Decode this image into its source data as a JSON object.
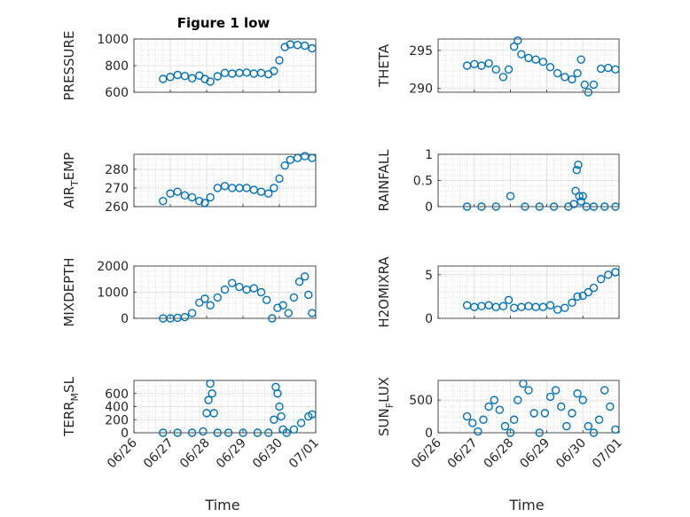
{
  "figure": {
    "title": "Figure 1 low",
    "marker_color": "#0072BD",
    "x_axis": {
      "label": "Time",
      "ticks": [
        "06/26",
        "06/27",
        "06/28",
        "06/29",
        "06/30",
        "07/01"
      ],
      "range": [
        0,
        5
      ]
    }
  },
  "chart_data": [
    {
      "id": "pressure",
      "type": "scatter",
      "ylabel": "PRESSURE",
      "ylim": [
        600,
        1000
      ],
      "yticks": [
        600,
        800,
        1000
      ],
      "ytick_labels": [
        "600",
        "800",
        "1000"
      ],
      "grid": true,
      "x": [
        0.8,
        1.0,
        1.2,
        1.4,
        1.6,
        1.8,
        1.95,
        2.1,
        2.3,
        2.5,
        2.7,
        2.9,
        3.1,
        3.3,
        3.5,
        3.7,
        3.85,
        4.0,
        4.15,
        4.3,
        4.5,
        4.7,
        4.9
      ],
      "y": [
        700,
        715,
        730,
        722,
        705,
        725,
        700,
        680,
        720,
        745,
        740,
        745,
        748,
        740,
        745,
        735,
        760,
        840,
        940,
        960,
        955,
        950,
        930
      ]
    },
    {
      "id": "theta",
      "type": "scatter",
      "ylabel": "THETA",
      "ylim": [
        289.5,
        296.5
      ],
      "yticks": [
        290,
        295
      ],
      "ytick_labels": [
        "290",
        "295"
      ],
      "grid": true,
      "x": [
        0.8,
        1.0,
        1.2,
        1.4,
        1.6,
        1.8,
        1.95,
        2.1,
        2.2,
        2.3,
        2.5,
        2.7,
        2.9,
        3.1,
        3.3,
        3.5,
        3.7,
        3.85,
        3.95,
        4.05,
        4.15,
        4.3,
        4.5,
        4.7,
        4.9
      ],
      "y": [
        293,
        293.2,
        293.0,
        293.3,
        292.5,
        291.5,
        292.5,
        295.5,
        296.3,
        294.5,
        294.0,
        293.8,
        293.5,
        292.8,
        292.0,
        291.5,
        291.2,
        292.0,
        293.8,
        290.5,
        289.5,
        290.5,
        292.6,
        292.7,
        292.5
      ]
    },
    {
      "id": "air_temp",
      "type": "scatter",
      "ylabel": "AIR_TEMP",
      "ylim": [
        260,
        288
      ],
      "yticks": [
        260,
        270,
        280
      ],
      "ytick_labels": [
        "260",
        "270",
        "280"
      ],
      "grid": true,
      "x": [
        0.8,
        1.0,
        1.2,
        1.4,
        1.6,
        1.8,
        1.95,
        2.1,
        2.3,
        2.5,
        2.7,
        2.9,
        3.1,
        3.3,
        3.5,
        3.7,
        3.85,
        4.0,
        4.15,
        4.3,
        4.5,
        4.7,
        4.9
      ],
      "y": [
        263,
        267,
        268,
        266,
        265,
        263,
        262,
        265,
        270,
        271,
        270,
        270,
        270,
        269,
        268,
        267,
        270,
        275,
        282,
        285,
        286,
        287,
        286
      ]
    },
    {
      "id": "rainfall",
      "type": "scatter",
      "ylabel": "RAINFALL",
      "ylim": [
        0,
        1
      ],
      "yticks": [
        0,
        0.5,
        1
      ],
      "ytick_labels": [
        "0",
        "0.5",
        "1"
      ],
      "grid": true,
      "x": [
        0.8,
        1.2,
        1.6,
        2.0,
        2.4,
        2.8,
        3.2,
        3.6,
        3.75,
        3.8,
        3.83,
        3.87,
        3.9,
        3.95,
        4.0,
        4.1,
        4.3,
        4.6,
        4.9
      ],
      "y": [
        0,
        0,
        0,
        0.2,
        0,
        0,
        0,
        0,
        0.05,
        0.3,
        0.7,
        0.8,
        0.2,
        0.1,
        0.2,
        0,
        0,
        0,
        0
      ]
    },
    {
      "id": "mixdepth",
      "type": "scatter",
      "ylabel": "MIXDEPTH",
      "ylim": [
        0,
        2000
      ],
      "yticks": [
        0,
        1000,
        2000
      ],
      "ytick_labels": [
        "0",
        "1000",
        "2000"
      ],
      "grid": true,
      "x": [
        0.8,
        1.0,
        1.2,
        1.4,
        1.6,
        1.8,
        1.95,
        2.1,
        2.3,
        2.5,
        2.7,
        2.9,
        3.1,
        3.3,
        3.5,
        3.65,
        3.8,
        3.95,
        4.1,
        4.25,
        4.4,
        4.55,
        4.7,
        4.8,
        4.9
      ],
      "y": [
        0,
        0,
        20,
        50,
        200,
        600,
        750,
        500,
        800,
        1100,
        1350,
        1200,
        1100,
        1150,
        1000,
        700,
        0,
        400,
        500,
        200,
        800,
        1400,
        1600,
        900,
        200
      ]
    },
    {
      "id": "h2omixra",
      "type": "scatter",
      "ylabel": "H2OMIXRA",
      "ylim": [
        0,
        6
      ],
      "yticks": [
        0,
        5
      ],
      "ytick_labels": [
        "0",
        "5"
      ],
      "grid": true,
      "x": [
        0.8,
        1.0,
        1.2,
        1.4,
        1.6,
        1.8,
        1.95,
        2.1,
        2.3,
        2.5,
        2.7,
        2.9,
        3.1,
        3.3,
        3.5,
        3.7,
        3.85,
        4.0,
        4.15,
        4.3,
        4.5,
        4.7,
        4.9
      ],
      "y": [
        1.5,
        1.3,
        1.4,
        1.5,
        1.3,
        1.4,
        2.1,
        1.2,
        1.3,
        1.4,
        1.3,
        1.3,
        1.5,
        1.0,
        1.2,
        1.8,
        2.5,
        2.6,
        3.0,
        3.5,
        4.5,
        5.0,
        5.3
      ]
    },
    {
      "id": "terr_msl",
      "type": "scatter",
      "ylabel": "TERR_MSL",
      "ylim": [
        0,
        800
      ],
      "yticks": [
        0,
        200,
        400,
        600
      ],
      "ytick_labels": [
        "0",
        "200",
        "400",
        "600"
      ],
      "grid": true,
      "x": [
        0.8,
        1.2,
        1.6,
        1.9,
        2.0,
        2.05,
        2.1,
        2.15,
        2.2,
        2.3,
        2.6,
        3.0,
        3.4,
        3.7,
        3.85,
        3.9,
        3.95,
        4.0,
        4.05,
        4.1,
        4.2,
        4.4,
        4.6,
        4.8,
        4.9
      ],
      "y": [
        0,
        0,
        0,
        20,
        300,
        500,
        750,
        600,
        300,
        0,
        0,
        0,
        0,
        0,
        200,
        700,
        600,
        400,
        250,
        50,
        0,
        50,
        150,
        250,
        280
      ]
    },
    {
      "id": "sun_flux",
      "type": "scatter",
      "ylabel": "SUN_FLUX",
      "ylim": [
        0,
        800
      ],
      "yticks": [
        0,
        500
      ],
      "ytick_labels": [
        "0",
        "500"
      ],
      "grid": true,
      "x": [
        0.8,
        0.95,
        1.1,
        1.25,
        1.4,
        1.55,
        1.7,
        1.85,
        2.0,
        2.1,
        2.2,
        2.35,
        2.5,
        2.65,
        2.8,
        2.95,
        3.1,
        3.25,
        3.4,
        3.55,
        3.7,
        3.85,
        4.0,
        4.15,
        4.3,
        4.45,
        4.6,
        4.75,
        4.9
      ],
      "y": [
        250,
        150,
        20,
        200,
        400,
        500,
        350,
        100,
        0,
        200,
        500,
        750,
        650,
        300,
        0,
        300,
        550,
        650,
        400,
        100,
        300,
        600,
        500,
        100,
        0,
        200,
        650,
        400,
        50
      ]
    }
  ]
}
